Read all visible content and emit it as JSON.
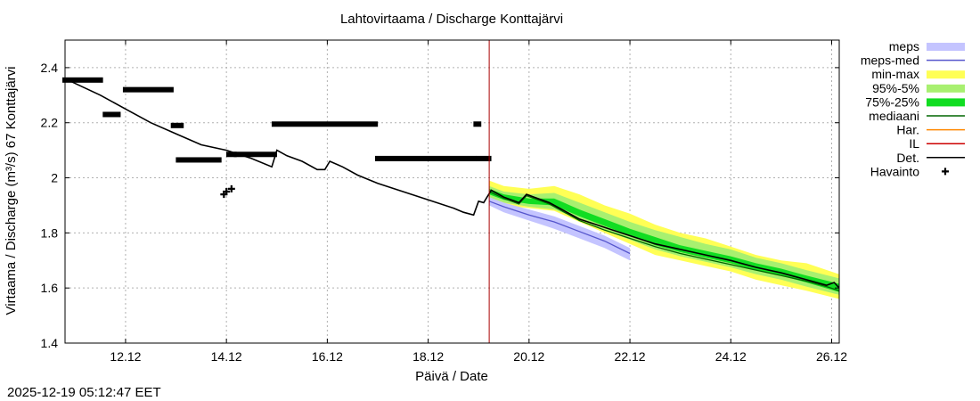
{
  "chart_data": {
    "type": "line",
    "title": "Lahtovirtaama / Discharge  Konttajärvi",
    "xlabel": "Päivä / Date",
    "ylabel": "Virtaama / Discharge (m³/s)  67 Konttajärvi",
    "timestamp": "2025-12-19 05:12:47 EET",
    "xlim": [
      10.8,
      26.15
    ],
    "ylim": [
      1.4,
      2.5
    ],
    "xticks": [
      12,
      14,
      16,
      18,
      20,
      22,
      24,
      26
    ],
    "xtick_labels": [
      "12.12",
      "14.12",
      "16.12",
      "18.12",
      "20.12",
      "22.12",
      "24.12",
      "26.12"
    ],
    "yticks": [
      1.4,
      1.6,
      1.8,
      2.0,
      2.2,
      2.4
    ],
    "ytick_labels": [
      "1.4",
      "1.6",
      "1.8",
      "2",
      "2.2",
      "2.4"
    ],
    "forecast_start_x": 19.21,
    "legend": [
      {
        "label": "meps",
        "color": "#c4c4ff",
        "style": "band"
      },
      {
        "label": "meps-med",
        "color": "#5555cc",
        "style": "line"
      },
      {
        "label": "min-max",
        "color": "#ffff55",
        "style": "band"
      },
      {
        "label": "95%-5%",
        "color": "#a8f070",
        "style": "band"
      },
      {
        "label": "75%-25%",
        "color": "#11dd22",
        "style": "band"
      },
      {
        "label": "mediaani",
        "color": "#006600",
        "style": "line"
      },
      {
        "label": "Har.",
        "color": "#ff8800",
        "style": "line"
      },
      {
        "label": "IL",
        "color": "#cc0000",
        "style": "line"
      },
      {
        "label": "Det.",
        "color": "#000000",
        "style": "line"
      },
      {
        "label": "Havainto",
        "color": "#000000",
        "style": "marker"
      }
    ],
    "series": [
      {
        "name": "Det.",
        "color": "#000000",
        "x": [
          10.8,
          11.5,
          12.0,
          12.5,
          13.0,
          13.5,
          14.0,
          14.5,
          14.9,
          15.0,
          15.2,
          15.5,
          15.8,
          15.95,
          16.05,
          16.3,
          16.6,
          17.0,
          17.5,
          18.0,
          18.5,
          18.7,
          18.9,
          19.0,
          19.1,
          19.25,
          19.5,
          19.8,
          19.95,
          20.1,
          20.4,
          20.7,
          21.0,
          21.5,
          22.0,
          22.5,
          23.0,
          23.5,
          24.0,
          24.5,
          25.0,
          25.5,
          25.9,
          26.05,
          26.15
        ],
        "y": [
          2.36,
          2.3,
          2.25,
          2.2,
          2.16,
          2.12,
          2.1,
          2.07,
          2.04,
          2.1,
          2.08,
          2.06,
          2.03,
          2.03,
          2.06,
          2.04,
          2.01,
          1.98,
          1.95,
          1.92,
          1.89,
          1.875,
          1.865,
          1.915,
          1.91,
          1.955,
          1.93,
          1.91,
          1.94,
          1.93,
          1.91,
          1.88,
          1.85,
          1.82,
          1.79,
          1.76,
          1.74,
          1.72,
          1.7,
          1.675,
          1.655,
          1.63,
          1.61,
          1.62,
          1.6
        ]
      },
      {
        "name": "mediaani",
        "color": "#006600",
        "x": [
          19.21,
          19.5,
          19.8,
          19.95,
          20.1,
          20.4,
          20.7,
          21.0,
          21.5,
          22.0,
          22.5,
          23.0,
          23.5,
          24.0,
          24.5,
          25.0,
          25.5,
          25.9,
          26.15
        ],
        "y": [
          1.95,
          1.925,
          1.905,
          1.935,
          1.925,
          1.905,
          1.875,
          1.845,
          1.81,
          1.78,
          1.75,
          1.725,
          1.705,
          1.685,
          1.665,
          1.645,
          1.625,
          1.605,
          1.59
        ]
      },
      {
        "name": "meps-med",
        "color": "#5555cc",
        "x": [
          19.21,
          19.5,
          20.0,
          20.5,
          21.0,
          21.5,
          22.0
        ],
        "y": [
          1.915,
          1.895,
          1.865,
          1.84,
          1.805,
          1.77,
          1.725
        ]
      }
    ],
    "bands": [
      {
        "name": "min-max",
        "color": "#ffff55",
        "x": [
          19.21,
          19.5,
          20.0,
          20.5,
          21.0,
          21.5,
          22.0,
          22.5,
          23.0,
          23.5,
          24.0,
          24.5,
          25.0,
          25.5,
          26.15
        ],
        "upper": [
          1.99,
          1.97,
          1.96,
          1.97,
          1.94,
          1.9,
          1.87,
          1.83,
          1.8,
          1.78,
          1.75,
          1.72,
          1.7,
          1.69,
          1.65
        ],
        "lower": [
          1.92,
          1.9,
          1.89,
          1.88,
          1.84,
          1.8,
          1.76,
          1.72,
          1.7,
          1.68,
          1.66,
          1.63,
          1.61,
          1.59,
          1.56
        ]
      },
      {
        "name": "95%-5%",
        "color": "#a8f070",
        "x": [
          19.21,
          19.5,
          20.0,
          20.5,
          21.0,
          21.5,
          22.0,
          22.5,
          23.0,
          23.5,
          24.0,
          24.5,
          25.0,
          25.5,
          26.15
        ],
        "upper": [
          1.97,
          1.95,
          1.94,
          1.945,
          1.91,
          1.875,
          1.84,
          1.81,
          1.785,
          1.76,
          1.74,
          1.71,
          1.69,
          1.665,
          1.635
        ],
        "lower": [
          1.93,
          1.91,
          1.895,
          1.885,
          1.85,
          1.81,
          1.775,
          1.74,
          1.715,
          1.695,
          1.675,
          1.65,
          1.63,
          1.605,
          1.575
        ]
      },
      {
        "name": "75%-25%",
        "color": "#11dd22",
        "x": [
          19.21,
          19.5,
          20.0,
          20.5,
          21.0,
          21.5,
          22.0,
          22.5,
          23.0,
          23.5,
          24.0,
          24.5,
          25.0,
          25.5,
          26.15
        ],
        "upper": [
          1.96,
          1.94,
          1.925,
          1.925,
          1.885,
          1.85,
          1.815,
          1.785,
          1.755,
          1.735,
          1.715,
          1.69,
          1.67,
          1.645,
          1.615
        ],
        "lower": [
          1.94,
          1.92,
          1.905,
          1.9,
          1.86,
          1.825,
          1.79,
          1.755,
          1.73,
          1.71,
          1.69,
          1.665,
          1.645,
          1.62,
          1.585
        ]
      },
      {
        "name": "meps",
        "color": "#c4c4ff",
        "x": [
          19.21,
          19.5,
          20.0,
          20.5,
          21.0,
          21.5,
          22.0
        ],
        "upper": [
          1.93,
          1.91,
          1.885,
          1.86,
          1.825,
          1.79,
          1.745
        ],
        "lower": [
          1.9,
          1.875,
          1.845,
          1.815,
          1.78,
          1.745,
          1.7
        ]
      }
    ],
    "observations": [
      {
        "x0": 10.8,
        "x1": 11.5,
        "y": 2.355
      },
      {
        "x0": 11.6,
        "x1": 11.85,
        "y": 2.23
      },
      {
        "x0": 12.0,
        "x1": 12.9,
        "y": 2.32
      },
      {
        "x0": 12.95,
        "x1": 13.1,
        "y": 2.19
      },
      {
        "x0": 13.05,
        "x1": 13.85,
        "y": 2.065
      },
      {
        "x0": 13.95,
        "x1": 13.95,
        "y": 1.94
      },
      {
        "x0": 14.0,
        "x1": 14.0,
        "y": 1.95
      },
      {
        "x0": 14.1,
        "x1": 14.1,
        "y": 1.96
      },
      {
        "x0": 14.05,
        "x1": 14.15,
        "y": 2.085
      },
      {
        "x0": 14.2,
        "x1": 14.95,
        "y": 2.085
      },
      {
        "x0": 14.95,
        "x1": 16.95,
        "y": 2.195
      },
      {
        "x0": 17.0,
        "x1": 18.9,
        "y": 2.07
      },
      {
        "x0": 18.95,
        "x1": 19.0,
        "y": 2.195
      },
      {
        "x0": 19.0,
        "x1": 19.2,
        "y": 2.07
      }
    ]
  }
}
